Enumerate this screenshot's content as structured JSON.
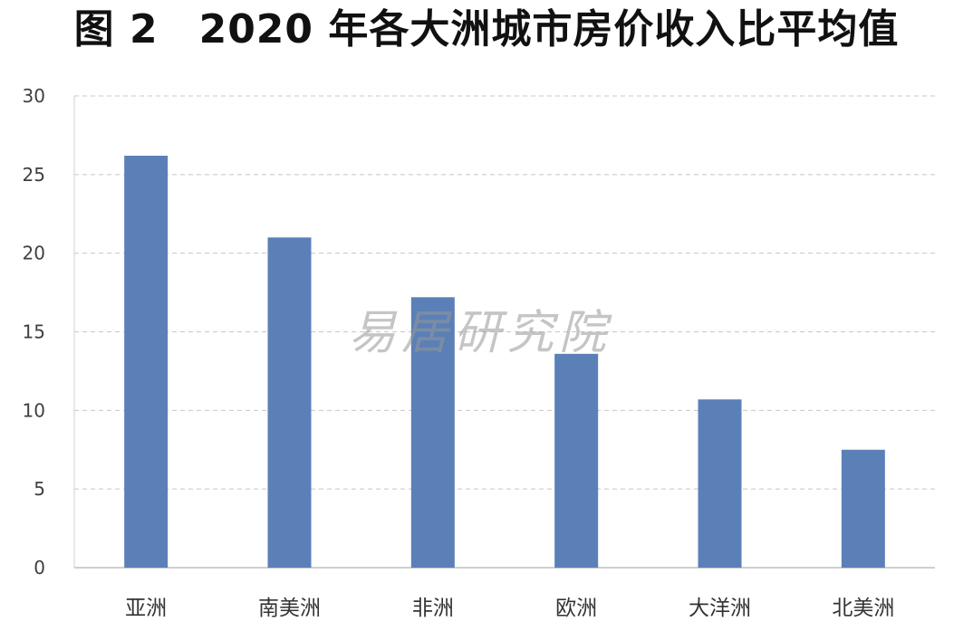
{
  "chart_data": {
    "type": "bar",
    "title": "图 2　2020 年各大洲城市房价收入比平均值",
    "categories": [
      "亚洲",
      "南美洲",
      "非洲",
      "欧洲",
      "大洋洲",
      "北美洲"
    ],
    "values": [
      26.2,
      21.0,
      17.2,
      13.6,
      10.7,
      7.5
    ],
    "xlabel": "",
    "ylabel": "",
    "ylim": [
      0,
      30
    ],
    "yticks": [
      "0",
      "5",
      "10",
      "15",
      "20",
      "25",
      "30"
    ],
    "grid": true,
    "bar_color": "#5b80b8",
    "watermark": "易居研究院"
  }
}
